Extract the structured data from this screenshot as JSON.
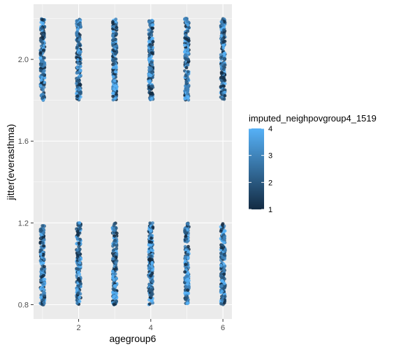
{
  "chart_data": {
    "type": "scatter",
    "title": "",
    "xlabel": "agegroup6",
    "ylabel": "jitter(everasthma)",
    "xlim": [
      0.75,
      6.25
    ],
    "ylim": [
      0.73,
      2.27
    ],
    "x_ticks": [
      2,
      4,
      6
    ],
    "x_tick_labels": [
      "2",
      "4",
      "6"
    ],
    "y_ticks": [
      0.8,
      1.2,
      1.6,
      2.0
    ],
    "y_tick_labels": [
      "0.8",
      "1.2",
      "1.6",
      "2.0"
    ],
    "grid": true,
    "legend": {
      "title": "imputed_neighpovgroup4_1519",
      "placement": "right",
      "type": "colorbar",
      "range": [
        1,
        4
      ],
      "ticks": [
        1,
        2,
        3,
        4
      ],
      "tick_labels": [
        "1",
        "2",
        "3",
        "4"
      ],
      "colors": [
        "#132B43",
        "#56B1F7"
      ]
    },
    "groups": [
      {
        "x": 1,
        "lower": [
          0.8,
          1.19
        ],
        "upper": [
          1.8,
          2.2
        ],
        "upper_only": false
      },
      {
        "x": 2,
        "lower": [
          0.8,
          1.2
        ],
        "upper": [
          1.8,
          2.2
        ]
      },
      {
        "x": 3,
        "lower": [
          0.8,
          1.2
        ],
        "upper": [
          1.8,
          2.2
        ]
      },
      {
        "x": 4,
        "lower": [
          0.8,
          1.2
        ],
        "upper": [
          1.8,
          2.2
        ]
      },
      {
        "x": 5,
        "lower": [
          0.8,
          1.2
        ],
        "upper": [
          1.8,
          2.2
        ]
      },
      {
        "x": 6,
        "lower": [
          0.8,
          1.2
        ],
        "upper": [
          1.8,
          2.2
        ]
      }
    ]
  }
}
